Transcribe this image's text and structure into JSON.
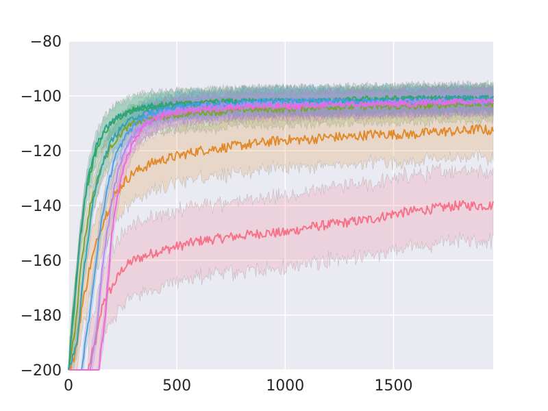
{
  "chart_data": {
    "type": "line",
    "title": "",
    "xlabel": "",
    "ylabel": "",
    "xlim": [
      0,
      1960
    ],
    "ylim": [
      -200,
      -80
    ],
    "grid": true,
    "legend": "none",
    "x_ticks": [
      0,
      500,
      1000,
      1500
    ],
    "y_ticks": [
      -200,
      -180,
      -160,
      -140,
      -120,
      -100,
      -80
    ],
    "x_tick_labels": [
      "0",
      "500",
      "1000",
      "1500"
    ],
    "y_tick_labels": [
      "−200",
      "−180",
      "−160",
      "−140",
      "−120",
      "−100",
      "−80"
    ],
    "background_color": "#eaeaf2",
    "grid_color": "#ffffff",
    "series": [
      {
        "color": "#f77189",
        "band": 13,
        "points": [
          [
            0,
            -200
          ],
          [
            90,
            -200
          ],
          [
            130,
            -188
          ],
          [
            160,
            -175
          ],
          [
            200,
            -170
          ],
          [
            250,
            -163
          ],
          [
            300,
            -160
          ],
          [
            400,
            -157
          ],
          [
            500,
            -155
          ],
          [
            600,
            -153
          ],
          [
            700,
            -152
          ],
          [
            800,
            -151
          ],
          [
            900,
            -150
          ],
          [
            1000,
            -150
          ],
          [
            1100,
            -148
          ],
          [
            1200,
            -147
          ],
          [
            1300,
            -146
          ],
          [
            1400,
            -145
          ],
          [
            1500,
            -143
          ],
          [
            1600,
            -142
          ],
          [
            1700,
            -141
          ],
          [
            1800,
            -140
          ],
          [
            1900,
            -140
          ],
          [
            1960,
            -140
          ]
        ]
      },
      {
        "color": "#e18a2a",
        "band": 10,
        "points": [
          [
            0,
            -200
          ],
          [
            30,
            -195
          ],
          [
            60,
            -178
          ],
          [
            100,
            -162
          ],
          [
            150,
            -148
          ],
          [
            200,
            -138
          ],
          [
            250,
            -132
          ],
          [
            300,
            -128
          ],
          [
            400,
            -124
          ],
          [
            500,
            -122
          ],
          [
            600,
            -120
          ],
          [
            700,
            -119
          ],
          [
            800,
            -118
          ],
          [
            900,
            -117
          ],
          [
            1000,
            -116
          ],
          [
            1100,
            -116
          ],
          [
            1200,
            -115
          ],
          [
            1300,
            -115
          ],
          [
            1400,
            -114
          ],
          [
            1500,
            -114
          ],
          [
            1600,
            -114
          ],
          [
            1700,
            -113
          ],
          [
            1800,
            -113
          ],
          [
            1900,
            -112
          ],
          [
            1960,
            -113
          ]
        ]
      },
      {
        "color": "#7fa32a",
        "band": 6,
        "points": [
          [
            0,
            -200
          ],
          [
            30,
            -185
          ],
          [
            60,
            -160
          ],
          [
            100,
            -140
          ],
          [
            150,
            -126
          ],
          [
            200,
            -118
          ],
          [
            250,
            -113
          ],
          [
            300,
            -110
          ],
          [
            400,
            -108
          ],
          [
            500,
            -107
          ],
          [
            600,
            -106
          ],
          [
            700,
            -106
          ],
          [
            800,
            -105
          ],
          [
            900,
            -105
          ],
          [
            1000,
            -105
          ],
          [
            1200,
            -104
          ],
          [
            1400,
            -104
          ],
          [
            1600,
            -104
          ],
          [
            1800,
            -103
          ],
          [
            1960,
            -103
          ]
        ]
      },
      {
        "color": "#35a94a",
        "band": 5,
        "points": [
          [
            0,
            -200
          ],
          [
            20,
            -180
          ],
          [
            50,
            -155
          ],
          [
            80,
            -135
          ],
          [
            120,
            -122
          ],
          [
            160,
            -114
          ],
          [
            200,
            -110
          ],
          [
            250,
            -107
          ],
          [
            300,
            -105
          ],
          [
            400,
            -104
          ],
          [
            500,
            -103
          ],
          [
            600,
            -103
          ],
          [
            700,
            -102
          ],
          [
            800,
            -102
          ],
          [
            1000,
            -102
          ],
          [
            1200,
            -102
          ],
          [
            1400,
            -101
          ],
          [
            1600,
            -101
          ],
          [
            1800,
            -101
          ],
          [
            1960,
            -101
          ]
        ]
      },
      {
        "color": "#2aa389",
        "band": 5,
        "points": [
          [
            0,
            -200
          ],
          [
            25,
            -178
          ],
          [
            55,
            -150
          ],
          [
            90,
            -130
          ],
          [
            130,
            -118
          ],
          [
            170,
            -112
          ],
          [
            220,
            -108
          ],
          [
            280,
            -106
          ],
          [
            350,
            -104
          ],
          [
            450,
            -103
          ],
          [
            600,
            -103
          ],
          [
            800,
            -102
          ],
          [
            1000,
            -102
          ],
          [
            1200,
            -102
          ],
          [
            1400,
            -102
          ],
          [
            1600,
            -101
          ],
          [
            1800,
            -101
          ],
          [
            1960,
            -101
          ]
        ]
      },
      {
        "color": "#2ea3ae",
        "band": 5,
        "points": [
          [
            0,
            -200
          ],
          [
            40,
            -190
          ],
          [
            70,
            -165
          ],
          [
            110,
            -140
          ],
          [
            150,
            -126
          ],
          [
            200,
            -116
          ],
          [
            250,
            -111
          ],
          [
            300,
            -108
          ],
          [
            400,
            -105
          ],
          [
            500,
            -104
          ],
          [
            700,
            -103
          ],
          [
            900,
            -102
          ],
          [
            1200,
            -102
          ],
          [
            1500,
            -102
          ],
          [
            1800,
            -101
          ],
          [
            1960,
            -101
          ]
        ]
      },
      {
        "color": "#4a9ee8",
        "band": 5,
        "points": [
          [
            0,
            -200
          ],
          [
            60,
            -200
          ],
          [
            100,
            -178
          ],
          [
            140,
            -152
          ],
          [
            180,
            -133
          ],
          [
            220,
            -121
          ],
          [
            270,
            -114
          ],
          [
            320,
            -109
          ],
          [
            400,
            -106
          ],
          [
            500,
            -104
          ],
          [
            700,
            -103
          ],
          [
            900,
            -102
          ],
          [
            1200,
            -102
          ],
          [
            1500,
            -102
          ],
          [
            1800,
            -102
          ],
          [
            1960,
            -102
          ]
        ]
      },
      {
        "color": "#b587f2",
        "band": 5,
        "points": [
          [
            0,
            -200
          ],
          [
            100,
            -200
          ],
          [
            130,
            -185
          ],
          [
            160,
            -160
          ],
          [
            200,
            -138
          ],
          [
            240,
            -124
          ],
          [
            290,
            -115
          ],
          [
            350,
            -110
          ],
          [
            450,
            -106
          ],
          [
            600,
            -104
          ],
          [
            800,
            -103
          ],
          [
            1000,
            -103
          ],
          [
            1300,
            -103
          ],
          [
            1600,
            -102
          ],
          [
            1960,
            -102
          ]
        ]
      },
      {
        "color": "#f165e0",
        "band": 5,
        "points": [
          [
            0,
            -200
          ],
          [
            140,
            -200
          ],
          [
            170,
            -180
          ],
          [
            200,
            -150
          ],
          [
            240,
            -130
          ],
          [
            290,
            -118
          ],
          [
            340,
            -112
          ],
          [
            400,
            -108
          ],
          [
            500,
            -106
          ],
          [
            600,
            -105
          ],
          [
            800,
            -104
          ],
          [
            1000,
            -104
          ],
          [
            1300,
            -103
          ],
          [
            1600,
            -103
          ],
          [
            1800,
            -102
          ],
          [
            1960,
            -102
          ]
        ]
      }
    ]
  }
}
